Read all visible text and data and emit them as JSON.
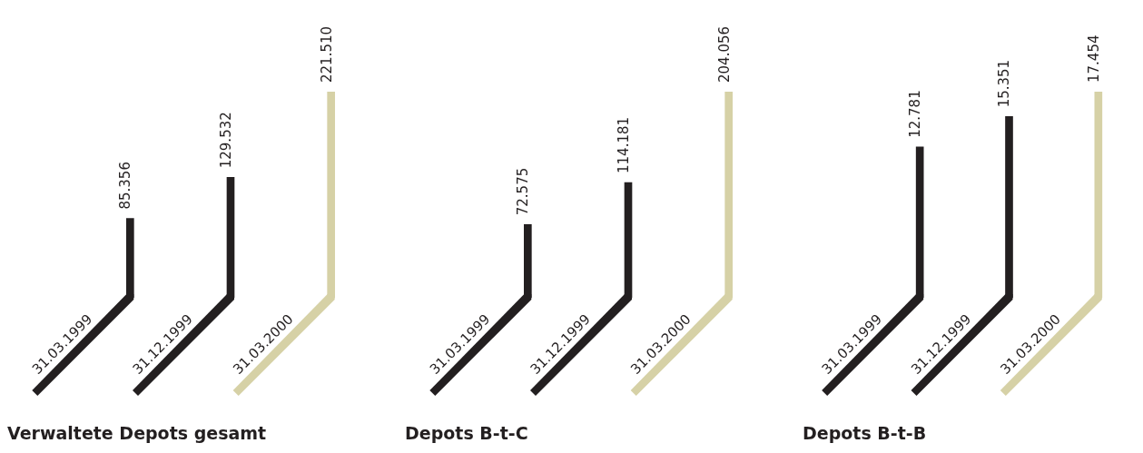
{
  "chart_data": [
    {
      "type": "bar",
      "title": "Verwaltete Depots gesamt",
      "categories": [
        "31.03.1999",
        "31.12.1999",
        "31.03.2000"
      ],
      "values": [
        85356,
        129532,
        221510
      ],
      "value_labels": [
        "85.356",
        "129.532",
        "221.510"
      ],
      "colors": [
        "#231f20",
        "#231f20",
        "#d6d1a6"
      ]
    },
    {
      "type": "bar",
      "title": "Depots B-t-C",
      "categories": [
        "31.03.1999",
        "31.12.1999",
        "31.03.2000"
      ],
      "values": [
        72575,
        114181,
        204056
      ],
      "value_labels": [
        "72.575",
        "114.181",
        "204.056"
      ],
      "colors": [
        "#231f20",
        "#231f20",
        "#d6d1a6"
      ]
    },
    {
      "type": "bar",
      "title": "Depots B-t-B",
      "categories": [
        "31.03.1999",
        "31.12.1999",
        "31.03.2000"
      ],
      "values": [
        12781,
        15351,
        17454
      ],
      "value_labels": [
        "12.781",
        "15.351",
        "17.454"
      ],
      "colors": [
        "#231f20",
        "#231f20",
        "#d6d1a6"
      ]
    }
  ]
}
